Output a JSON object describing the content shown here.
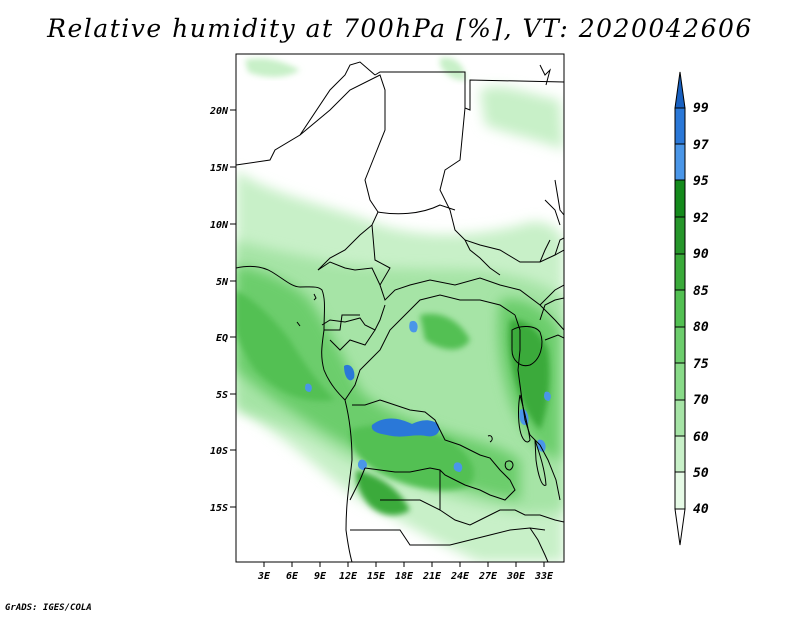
{
  "title": "Relative humidity at 700hPa [%], VT: 2020042606",
  "credit": "GrADS: IGES/COLA",
  "lat_labels": [
    "20N",
    "15N",
    "10N",
    "5N",
    "EQ",
    "5S",
    "10S",
    "15S"
  ],
  "lon_labels": [
    "3E",
    "6E",
    "9E",
    "12E",
    "15E",
    "18E",
    "21E",
    "24E",
    "27E",
    "30E",
    "33E"
  ],
  "colorbar": {
    "levels": [
      "40",
      "50",
      "60",
      "70",
      "75",
      "80",
      "85",
      "90",
      "92",
      "95",
      "97",
      "99"
    ],
    "colors": [
      "#ffffff",
      "#e6fae6",
      "#c8f0c8",
      "#a6e4a6",
      "#88da88",
      "#6ccd6c",
      "#52c052",
      "#3aaa3a",
      "#26962a",
      "#148a1c",
      "#4a96e8",
      "#2a78d8",
      "#1860c0"
    ]
  },
  "map": {
    "ocean_color": "#ffffff",
    "border_color": "#000000",
    "extent": {
      "lon_min": 0,
      "lon_max": 35,
      "lat_min": -20,
      "lat_max": 25
    }
  }
}
